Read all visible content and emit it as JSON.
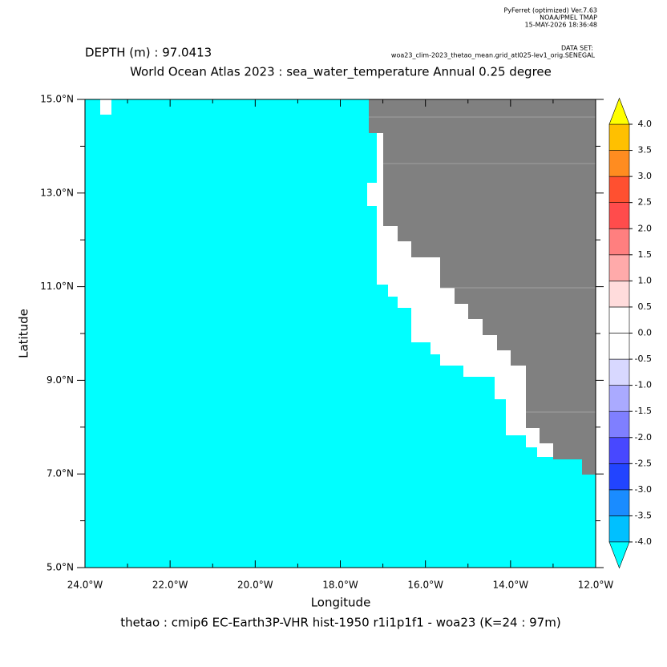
{
  "chart_data": {
    "type": "map",
    "header": [
      "PyFerret (optimized) Ver.7.63",
      "NOAA/PMEL TMAP",
      "15-MAY-2026 18:36:48"
    ],
    "dataset_label": "DATA SET:",
    "dataset": "woa23_clim-2023_thetao_mean.grid_atl025-lev1_orig.SENEGAL",
    "depth": "DEPTH (m) : 97.0413",
    "title": "World Ocean Atlas 2023 : sea_water_temperature Annual  0.25 degree",
    "xlabel": "Longitude",
    "ylabel": "Latitude",
    "footer": "thetao : cmip6 EC-Earth3P-VHR hist-1950 r1i1p1f1 - woa23  (K=24 : 97m)",
    "xlim": [
      -24,
      -12
    ],
    "ylim": [
      5,
      15
    ],
    "xticks": [
      {
        "value": -24,
        "label": "24.0°W"
      },
      {
        "value": -22,
        "label": "22.0°W"
      },
      {
        "value": -20,
        "label": "20.0°W"
      },
      {
        "value": -18,
        "label": "18.0°W"
      },
      {
        "value": -16,
        "label": "16.0°W"
      },
      {
        "value": -14,
        "label": "14.0°W"
      },
      {
        "value": -12,
        "label": "12.0°W"
      }
    ],
    "yticks": [
      {
        "value": 5,
        "label": "5.0°N"
      },
      {
        "value": 7,
        "label": "7.0°N"
      },
      {
        "value": 9,
        "label": "9.0°N"
      },
      {
        "value": 11,
        "label": "11.0°N"
      },
      {
        "value": 13,
        "label": "13.0°N"
      },
      {
        "value": 15,
        "label": "15.0°N"
      }
    ],
    "land_color": "#808080",
    "colorbar": {
      "levels": [
        {
          "value": -4,
          "label": "-4.0"
        },
        -3.5,
        {
          "value": -3,
          "label": "-3.0"
        },
        -2.5,
        {
          "value": -2,
          "label": "-2.0"
        },
        -1.5,
        {
          "value": -1,
          "label": "-1.0"
        },
        -0.5,
        {
          "value": 0,
          "label": "0.0"
        },
        0.5,
        {
          "value": 1,
          "label": "1.0"
        },
        1.5,
        {
          "value": 2,
          "label": "2.0"
        },
        2.5,
        {
          "value": 3,
          "label": "3.0"
        },
        3.5,
        {
          "value": 4,
          "label": "4.0"
        }
      ],
      "colors": [
        "#00c0ff",
        "#1a8cff",
        "#2244ff",
        "#4848ff",
        "#7f7fff",
        "#aaaaff",
        "#d8d8ff",
        "#ffffff",
        "#ffffff",
        "#ffdcdc",
        "#ffaaaa",
        "#ff7f7f",
        "#ff4c4c",
        "#ff5030",
        "#ff8c20",
        "#ffc000"
      ],
      "under_color": "#00ffff",
      "over_color": "#ffff00"
    }
  }
}
